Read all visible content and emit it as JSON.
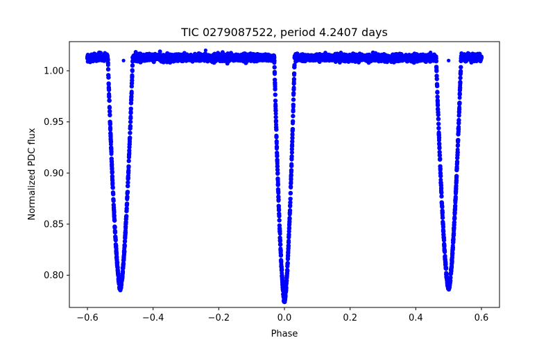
{
  "chart_data": {
    "type": "scatter",
    "title": "TIC 0279087522, period 4.2407 days",
    "xlabel": "Phase",
    "ylabel": "Normalized PDC flux",
    "xlim": [
      -0.655,
      0.655
    ],
    "ylim": [
      0.7685,
      1.0285
    ],
    "xticks": [
      -0.6,
      -0.4,
      -0.2,
      0.0,
      0.2,
      0.4,
      0.6
    ],
    "xtick_labels": [
      "−0.6",
      "−0.4",
      "−0.2",
      "0.0",
      "0.2",
      "0.4",
      "0.6"
    ],
    "yticks": [
      0.8,
      0.85,
      0.9,
      0.95,
      1.0
    ],
    "ytick_labels": [
      "0.80",
      "0.85",
      "0.90",
      "0.95",
      "1.00"
    ],
    "grid": false,
    "legend": null,
    "marker_color": "#0000ff",
    "phase_range": [
      -0.6,
      0.6
    ],
    "baseline_flux": 1.0128,
    "baseline_scatter": 0.0028,
    "eclipses": [
      {
        "phase": -0.5,
        "min_flux": 0.787,
        "half_width": 0.038
      },
      {
        "phase": 0.0,
        "min_flux": 0.775,
        "half_width": 0.031
      },
      {
        "phase": 0.5,
        "min_flux": 0.787,
        "half_width": 0.038
      }
    ],
    "outliers": [
      {
        "x": -0.49,
        "y": 1.01
      },
      {
        "x": 0.5,
        "y": 1.01
      },
      {
        "x": -0.24,
        "y": 1.02
      },
      {
        "x": -0.565,
        "y": 1.018
      },
      {
        "x": 0.445,
        "y": 1.018
      }
    ]
  }
}
